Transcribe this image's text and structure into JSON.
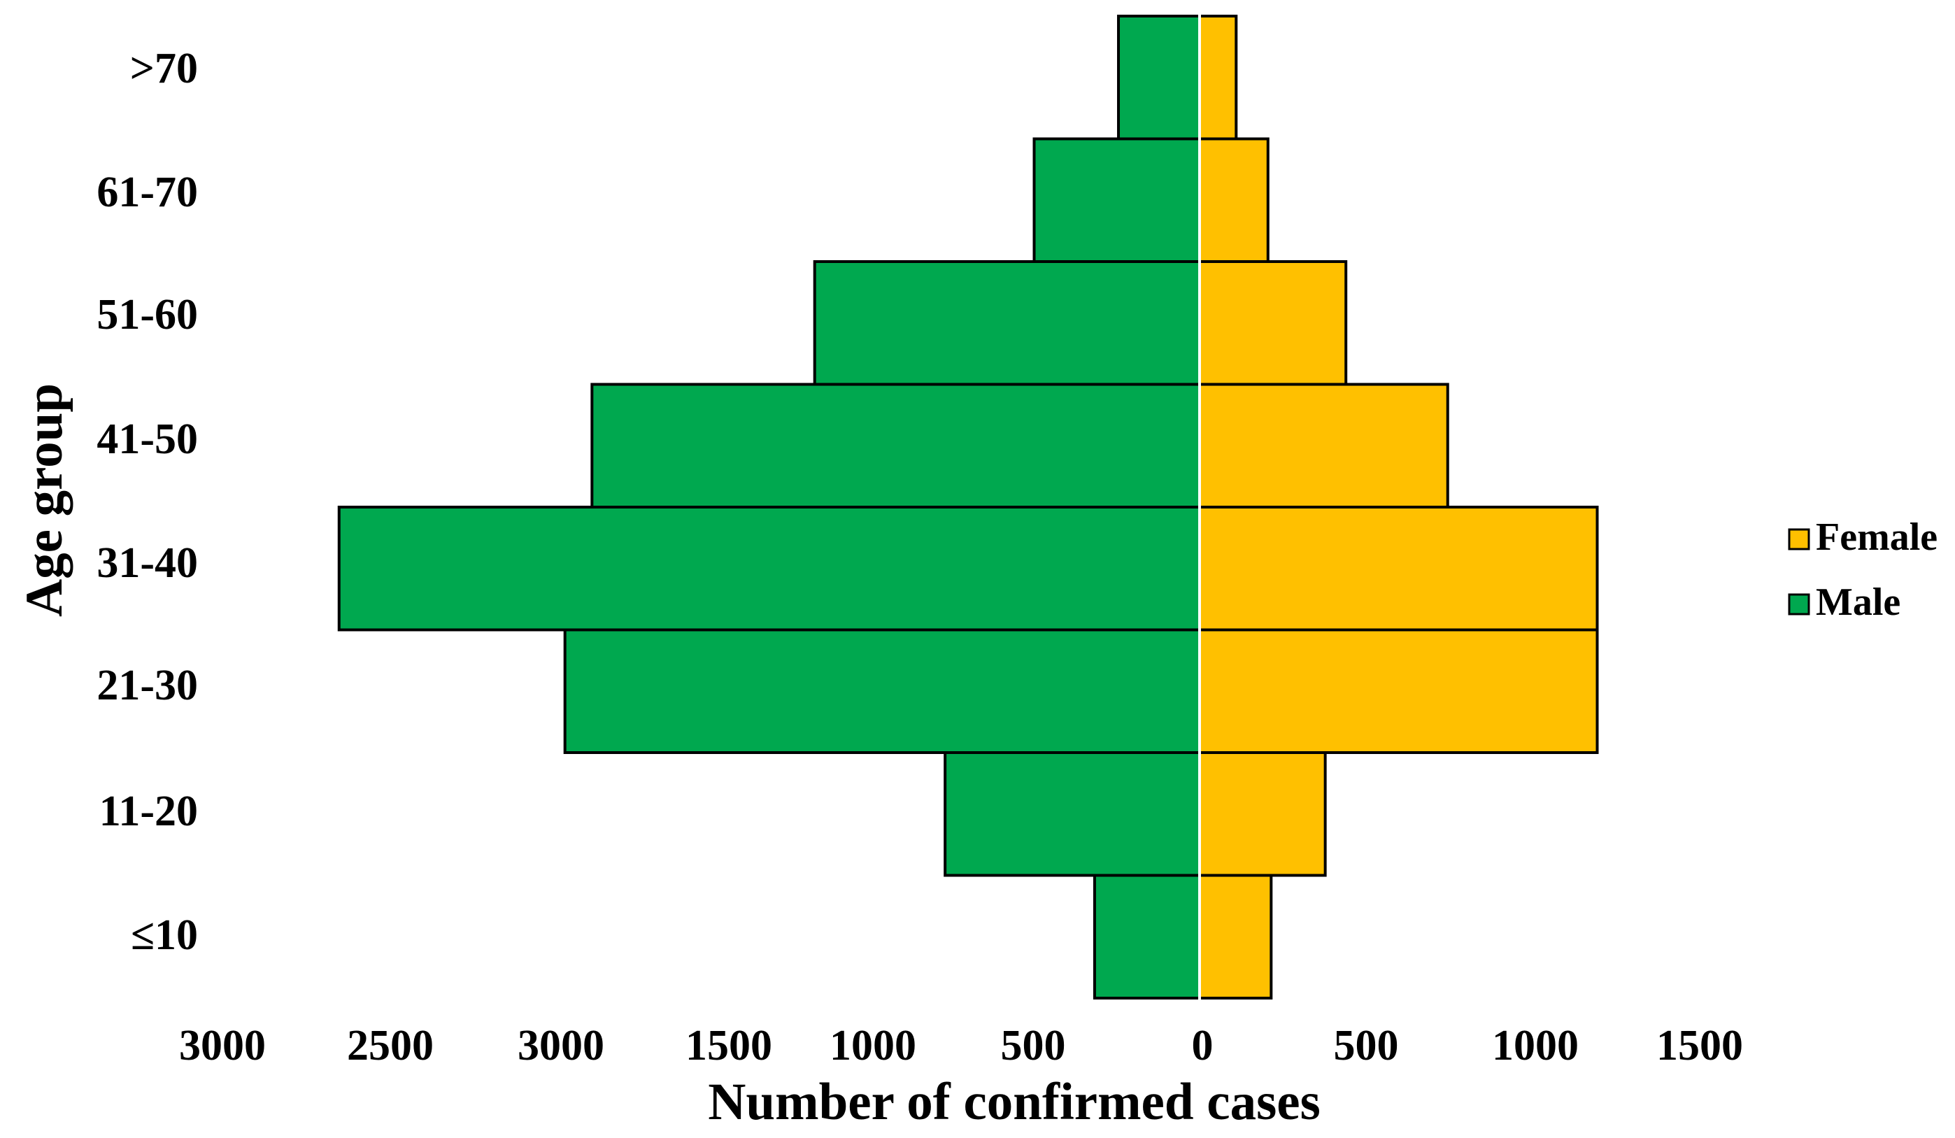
{
  "chart_data": {
    "type": "bar",
    "orientation": "horizontal",
    "layout": "population-pyramid",
    "categories": [
      "≤10",
      "11-20",
      "21-30",
      "31-40",
      "41-50",
      "51-60",
      "61-70",
      ">70"
    ],
    "series": [
      {
        "name": "Male",
        "color": "#00A84F",
        "side": "left",
        "values": [
          330,
          800,
          1995,
          2705,
          1910,
          1210,
          520,
          255
        ]
      },
      {
        "name": "Female",
        "color": "#FFC000",
        "side": "right",
        "values": [
          225,
          395,
          1250,
          1250,
          780,
          460,
          215,
          115
        ]
      }
    ],
    "xlabel": "Number of confirmed cases",
    "ylabel": "Age group",
    "xticks": [
      "3000",
      "2500",
      "3000",
      "1500",
      "1000",
      "500",
      "0",
      "500",
      "1000",
      "1500"
    ],
    "legend": {
      "position": "right",
      "entries": [
        "Female",
        "Male"
      ]
    },
    "grid": false
  }
}
